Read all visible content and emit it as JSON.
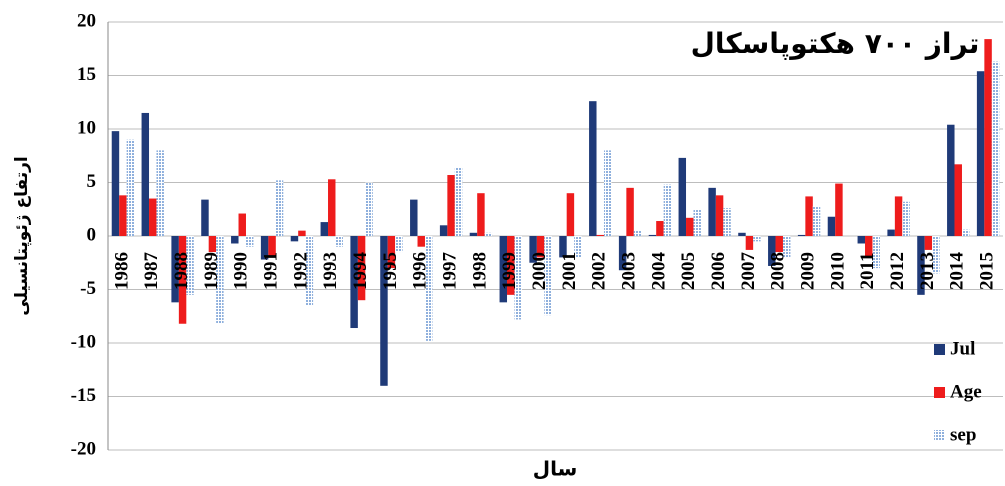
{
  "chart_data": {
    "type": "bar",
    "title": "تراز ۷۰۰ هکتوپاسکال",
    "y_label": "ارتفاع ژئوپتانسیلی",
    "x_label": "سال",
    "categories": [
      "1986",
      "1987",
      "1988",
      "1989",
      "1990",
      "1991",
      "1992",
      "1993",
      "1994",
      "1995",
      "1996",
      "1997",
      "1998",
      "1999",
      "2000",
      "2001",
      "2002",
      "2003",
      "2004",
      "2005",
      "2006",
      "2007",
      "2008",
      "2009",
      "2010",
      "2011",
      "2012",
      "2013",
      "2014",
      "2015"
    ],
    "series": [
      {
        "name": "Jul",
        "color": "#1f3a78",
        "values": [
          9.8,
          11.5,
          -6.2,
          3.4,
          -0.7,
          -2.2,
          -0.5,
          1.3,
          -8.6,
          -14,
          3.4,
          1,
          0.3,
          -6.2,
          -2.5,
          -2,
          12.6,
          -3.2,
          0.1,
          7.3,
          4.5,
          0.3,
          -2.8,
          0.1,
          1.8,
          -0.7,
          0.6,
          -5.5,
          10.4,
          15.4
        ]
      },
      {
        "name": "Age",
        "color": "#ee1c1c",
        "values": [
          3.8,
          3.5,
          -8.2,
          -1.5,
          2.1,
          -2,
          0.5,
          5.3,
          -6,
          -3,
          -1,
          5.7,
          4,
          -5.5,
          -2,
          4,
          0.1,
          4.5,
          1.4,
          1.7,
          3.8,
          -1.3,
          -1.5,
          3.7,
          4.9,
          -2,
          3.7,
          -1.3,
          6.7,
          18.4
        ]
      },
      {
        "name": "sep",
        "color": "#8fb0dd",
        "values": [
          9,
          8,
          -5.5,
          -8.2,
          -1,
          5.2,
          -6.5,
          -1,
          5,
          -1.5,
          -9.8,
          6.4,
          0.3,
          -7.8,
          -7.4,
          -2,
          8,
          0.5,
          4.8,
          2.5,
          2.6,
          -0.5,
          -2,
          2.8,
          0,
          -3,
          3.2,
          -3.5,
          0.6,
          16.3
        ]
      }
    ],
    "ylim": [
      -20,
      20
    ],
    "yticks": [
      -20,
      -15,
      -10,
      -5,
      0,
      5,
      10,
      15,
      20
    ],
    "grid": true
  }
}
